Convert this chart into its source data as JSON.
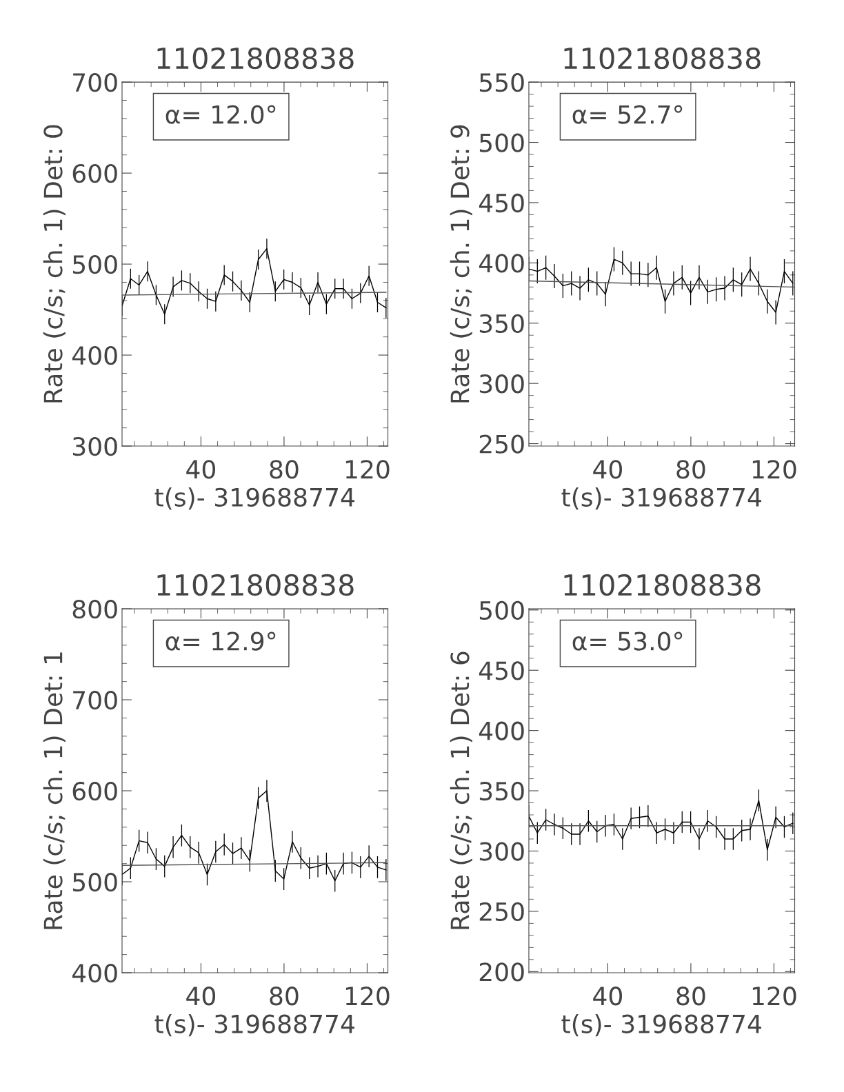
{
  "chart_data": [
    {
      "type": "line",
      "title": "11021808838",
      "xlabel": "t(s)- 319688774",
      "ylabel": "Rate (c/s; ch. 1) Det: 0",
      "annotations": [
        "α= 12.0°"
      ],
      "xlim": [
        2,
        130
      ],
      "xticks": [
        40,
        80,
        120
      ],
      "ylim": [
        300,
        700
      ],
      "yticks": [
        300,
        400,
        500,
        600,
        700
      ],
      "grid": false,
      "legend": false,
      "series": [
        {
          "color": "#000000",
          "x": [
            2.0,
            6.1,
            10.2,
            14.3,
            18.4,
            22.5,
            26.6,
            30.7,
            34.8,
            38.9,
            43.0,
            47.1,
            51.2,
            55.3,
            59.4,
            63.5,
            67.6,
            71.7,
            75.8,
            79.9,
            84.0,
            88.1,
            92.2,
            96.3,
            100.4,
            104.5,
            108.6,
            112.7,
            116.8,
            120.9,
            125.0,
            129.1
          ],
          "values": [
            454,
            484,
            477,
            492,
            466,
            445,
            475,
            482,
            479,
            470,
            462,
            459,
            488,
            481,
            471,
            458,
            505,
            517,
            470,
            483,
            480,
            474,
            455,
            480,
            456,
            473,
            473,
            462,
            468,
            487,
            458,
            452
          ],
          "errors": [
            11,
            11,
            11,
            11,
            11,
            11,
            11,
            11,
            11,
            11,
            11,
            11,
            11,
            11,
            11,
            11,
            11,
            11,
            11,
            11,
            11,
            11,
            11,
            11,
            11,
            11,
            11,
            11,
            11,
            11,
            11,
            11
          ]
        },
        {
          "color": "#555555",
          "x": [
            2,
            129.1
          ],
          "values": [
            466,
            469
          ]
        }
      ]
    },
    {
      "type": "line",
      "title": "11021808838",
      "xlabel": "t(s)- 319688774",
      "ylabel": "Rate (c/s; ch. 1) Det: 9",
      "annotations": [
        "α= 52.7°"
      ],
      "xlim": [
        2,
        130
      ],
      "xticks": [
        40,
        80,
        120
      ],
      "ylim": [
        248,
        550
      ],
      "yticks": [
        250,
        300,
        350,
        400,
        450,
        500,
        550
      ],
      "grid": false,
      "legend": false,
      "series": [
        {
          "color": "#000000",
          "x": [
            2.0,
            6.1,
            10.2,
            14.3,
            18.4,
            22.5,
            26.6,
            30.7,
            34.8,
            38.9,
            43.0,
            47.1,
            51.2,
            55.3,
            59.4,
            63.5,
            67.6,
            71.7,
            75.8,
            79.9,
            84.0,
            88.1,
            92.2,
            96.3,
            100.4,
            104.5,
            108.6,
            112.7,
            116.8,
            120.9,
            125.0,
            129.1
          ],
          "values": [
            395,
            393,
            396,
            389,
            381,
            383,
            379,
            386,
            383,
            374,
            403,
            400,
            391,
            391,
            390,
            396,
            368,
            383,
            388,
            375,
            388,
            376,
            378,
            379,
            386,
            382,
            395,
            383,
            368,
            359,
            393,
            383
          ],
          "errors": [
            10,
            10,
            10,
            10,
            10,
            10,
            10,
            10,
            10,
            10,
            10,
            10,
            10,
            10,
            10,
            10,
            10,
            10,
            10,
            10,
            10,
            10,
            10,
            10,
            10,
            10,
            10,
            10,
            10,
            10,
            10,
            10
          ]
        },
        {
          "color": "#555555",
          "x": [
            2,
            129.1
          ],
          "values": [
            385,
            380
          ]
        }
      ]
    },
    {
      "type": "line",
      "title": "11021808838",
      "xlabel": "t(s)- 319688774",
      "ylabel": "Rate (c/s; ch. 1) Det: 1",
      "annotations": [
        "α= 12.9°"
      ],
      "xlim": [
        2,
        130
      ],
      "xticks": [
        40,
        80,
        120
      ],
      "ylim": [
        400,
        800
      ],
      "yticks": [
        400,
        500,
        600,
        700,
        800
      ],
      "grid": false,
      "legend": false,
      "series": [
        {
          "color": "#000000",
          "x": [
            2.0,
            6.1,
            10.2,
            14.3,
            18.4,
            22.5,
            26.6,
            30.7,
            34.8,
            38.9,
            43.0,
            47.1,
            51.2,
            55.3,
            59.4,
            63.5,
            67.6,
            71.7,
            75.8,
            79.9,
            84.0,
            88.1,
            92.2,
            96.3,
            100.4,
            104.5,
            108.6,
            112.7,
            116.8,
            120.9,
            125.0,
            129.1
          ],
          "values": [
            508,
            515,
            545,
            543,
            525,
            517,
            538,
            551,
            538,
            532,
            508,
            533,
            541,
            531,
            537,
            523,
            592,
            600,
            512,
            503,
            544,
            526,
            515,
            517,
            520,
            501,
            520,
            521,
            516,
            528,
            516,
            513
          ],
          "errors": [
            12,
            12,
            12,
            12,
            12,
            12,
            12,
            12,
            12,
            12,
            12,
            12,
            12,
            12,
            12,
            12,
            12,
            12,
            12,
            12,
            12,
            12,
            12,
            12,
            12,
            12,
            12,
            12,
            12,
            12,
            12,
            12
          ]
        },
        {
          "color": "#555555",
          "x": [
            2,
            129.1
          ],
          "values": [
            518,
            521
          ]
        }
      ]
    },
    {
      "type": "line",
      "title": "11021808838",
      "xlabel": "t(s)- 319688774",
      "ylabel": "Rate (c/s; ch. 1) Det: 6",
      "annotations": [
        "α= 53.0°"
      ],
      "xlim": [
        2,
        130
      ],
      "xticks": [
        40,
        80,
        120
      ],
      "ylim": [
        199,
        501
      ],
      "yticks": [
        200,
        250,
        300,
        350,
        400,
        450,
        500
      ],
      "grid": false,
      "legend": false,
      "series": [
        {
          "color": "#000000",
          "x": [
            2.0,
            6.1,
            10.2,
            14.3,
            18.4,
            22.5,
            26.6,
            30.7,
            34.8,
            38.9,
            43.0,
            47.1,
            51.2,
            55.3,
            59.4,
            63.5,
            67.6,
            71.7,
            75.8,
            79.9,
            84.0,
            88.1,
            92.2,
            96.3,
            100.4,
            104.5,
            108.6,
            112.7,
            116.8,
            120.9,
            125.0,
            129.1
          ],
          "values": [
            329,
            315,
            326,
            322,
            319,
            314,
            314,
            325,
            316,
            321,
            322,
            310,
            327,
            328,
            329,
            315,
            318,
            315,
            324,
            324,
            310,
            325,
            320,
            310,
            310,
            317,
            318,
            342,
            301,
            328,
            320,
            323
          ],
          "errors": [
            9,
            9,
            9,
            9,
            9,
            9,
            9,
            9,
            9,
            9,
            9,
            9,
            9,
            9,
            9,
            9,
            9,
            9,
            9,
            9,
            9,
            9,
            9,
            9,
            9,
            9,
            9,
            9,
            9,
            9,
            9,
            9
          ]
        },
        {
          "color": "#555555",
          "x": [
            2,
            129.1
          ],
          "values": [
            321,
            321
          ]
        }
      ]
    }
  ]
}
